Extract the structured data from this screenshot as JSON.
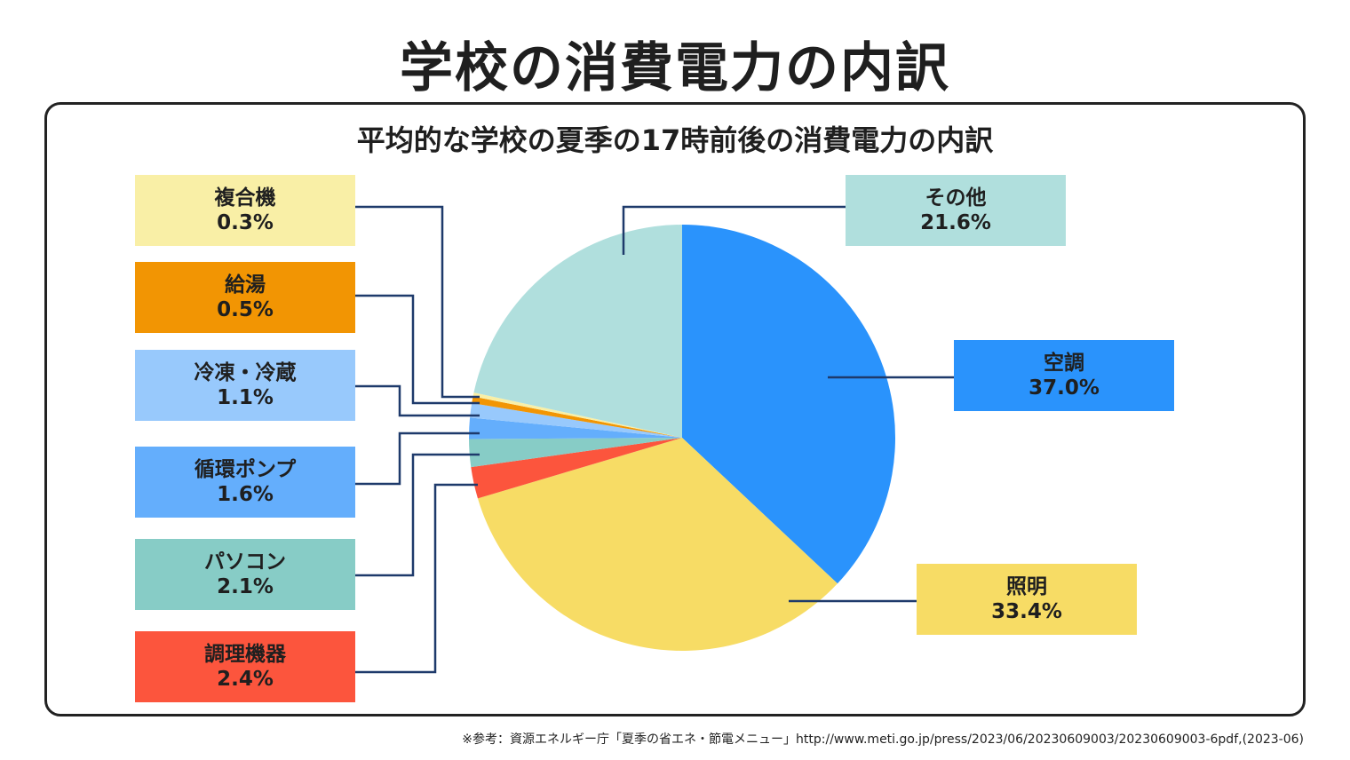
{
  "title": "学校の消費電力の内訳",
  "footnote": "※参考：資源エネルギー庁「夏季の省エネ・節電メニュー」http://www.meti.go.jp/press/2023/06/20230609003/20230609003-6pdf,(2023-06)",
  "chart_data": {
    "type": "pie",
    "title": "平均的な学校の夏季の17時前後の消費電力の内訳",
    "start": "12 o'clock, clockwise",
    "slices": [
      {
        "label": "空調",
        "value": 37.0,
        "value_text": "37.0%",
        "color": "#2a93fc"
      },
      {
        "label": "照明",
        "value": 33.4,
        "value_text": "33.4%",
        "color": "#f7dc65"
      },
      {
        "label": "調理機器",
        "value": 2.4,
        "value_text": "2.4%",
        "color": "#fc553d"
      },
      {
        "label": "パソコン",
        "value": 2.1,
        "value_text": "2.1%",
        "color": "#87ccc6"
      },
      {
        "label": "循環ポンプ",
        "value": 1.6,
        "value_text": "1.6%",
        "color": "#64aefc"
      },
      {
        "label": "冷凍・冷蔵",
        "value": 1.1,
        "value_text": "1.1%",
        "color": "#98c9fc"
      },
      {
        "label": "給湯",
        "value": 0.5,
        "value_text": "0.5%",
        "color": "#f29503"
      },
      {
        "label": "複合機",
        "value": 0.3,
        "value_text": "0.3%",
        "color": "#f9efa6"
      },
      {
        "label": "その他",
        "value": 21.6,
        "value_text": "21.6%",
        "color": "#b0dfdd"
      }
    ]
  }
}
